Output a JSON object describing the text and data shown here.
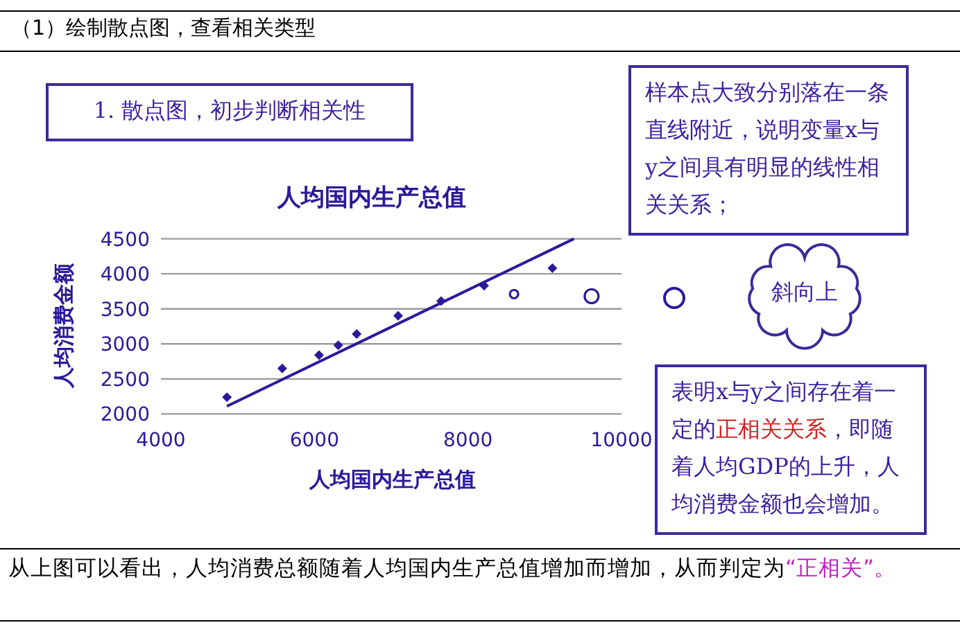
{
  "chart_data": {
    "type": "scatter",
    "title": "人均国内生产总值",
    "xlabel": "人均国内生产总值",
    "ylabel": "人均消费金额",
    "xlim": [
      4000,
      10000
    ],
    "xticks": [
      4000,
      6000,
      8000,
      10000
    ],
    "ylim": [
      2000,
      4500
    ],
    "yticks": [
      2000,
      2500,
      3000,
      3500,
      4000,
      4500
    ],
    "grid": "y",
    "series": [
      {
        "type": "scatter",
        "marker": "diamond",
        "color": "#2a1a9a",
        "x": [
          4860,
          5580,
          6060,
          6310,
          6550,
          7090,
          7650,
          8210,
          9100
        ],
        "values": [
          2240,
          2650,
          2840,
          2980,
          3140,
          3400,
          3610,
          3830,
          4080
        ]
      },
      {
        "type": "scatter",
        "marker": "circle",
        "color": "#2a1a9a",
        "x": [
          8600,
          9610
        ],
        "values": [
          3710,
          3680
        ]
      },
      {
        "type": "line",
        "color": "#2a1a9a",
        "x": [
          4860,
          9380
        ],
        "values": [
          2110,
          4500
        ]
      }
    ],
    "annotations": [
      "（1）绘制散点图，查看相关类型",
      "1. 散点图，初步判断相关性",
      "样本点大致分别落在一条直线附近，说明变量x与y之间具有明显的线性相关关系；",
      "斜向上",
      "表明x与y之间存在着一定的",
      "正相关关系",
      "，即随着人均GDP的上升，人均消费金额也会增加。",
      "从上图可以看出，人均消费总额随着人均国内生产总值增加而增加，从而判定为",
      "“正相关”。"
    ]
  }
}
